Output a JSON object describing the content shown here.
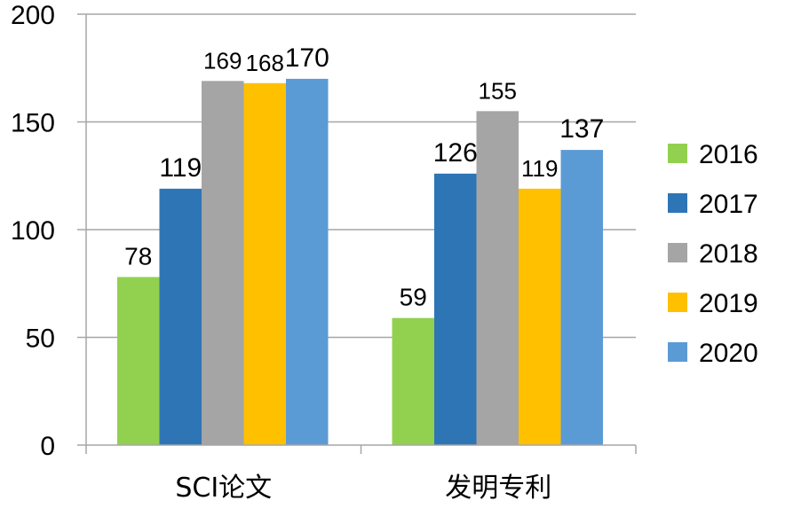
{
  "chart_data": {
    "type": "bar",
    "title": "",
    "xlabel": "",
    "ylabel": "",
    "categories": [
      "SCI论文",
      "发明专利"
    ],
    "series": [
      {
        "name": "2016",
        "color": "#92D050",
        "values": [
          78,
          59
        ]
      },
      {
        "name": "2017",
        "color": "#2E75B6",
        "values": [
          119,
          126
        ]
      },
      {
        "name": "2018",
        "color": "#A5A5A5",
        "values": [
          169,
          155
        ]
      },
      {
        "name": "2019",
        "color": "#FFC000",
        "values": [
          168,
          119
        ]
      },
      {
        "name": "2020",
        "color": "#5B9BD5",
        "values": [
          170,
          137
        ]
      }
    ],
    "ylim": [
      0,
      200
    ],
    "yticks": [
      0,
      50,
      100,
      150,
      200
    ],
    "grid": true,
    "legend": "right"
  }
}
